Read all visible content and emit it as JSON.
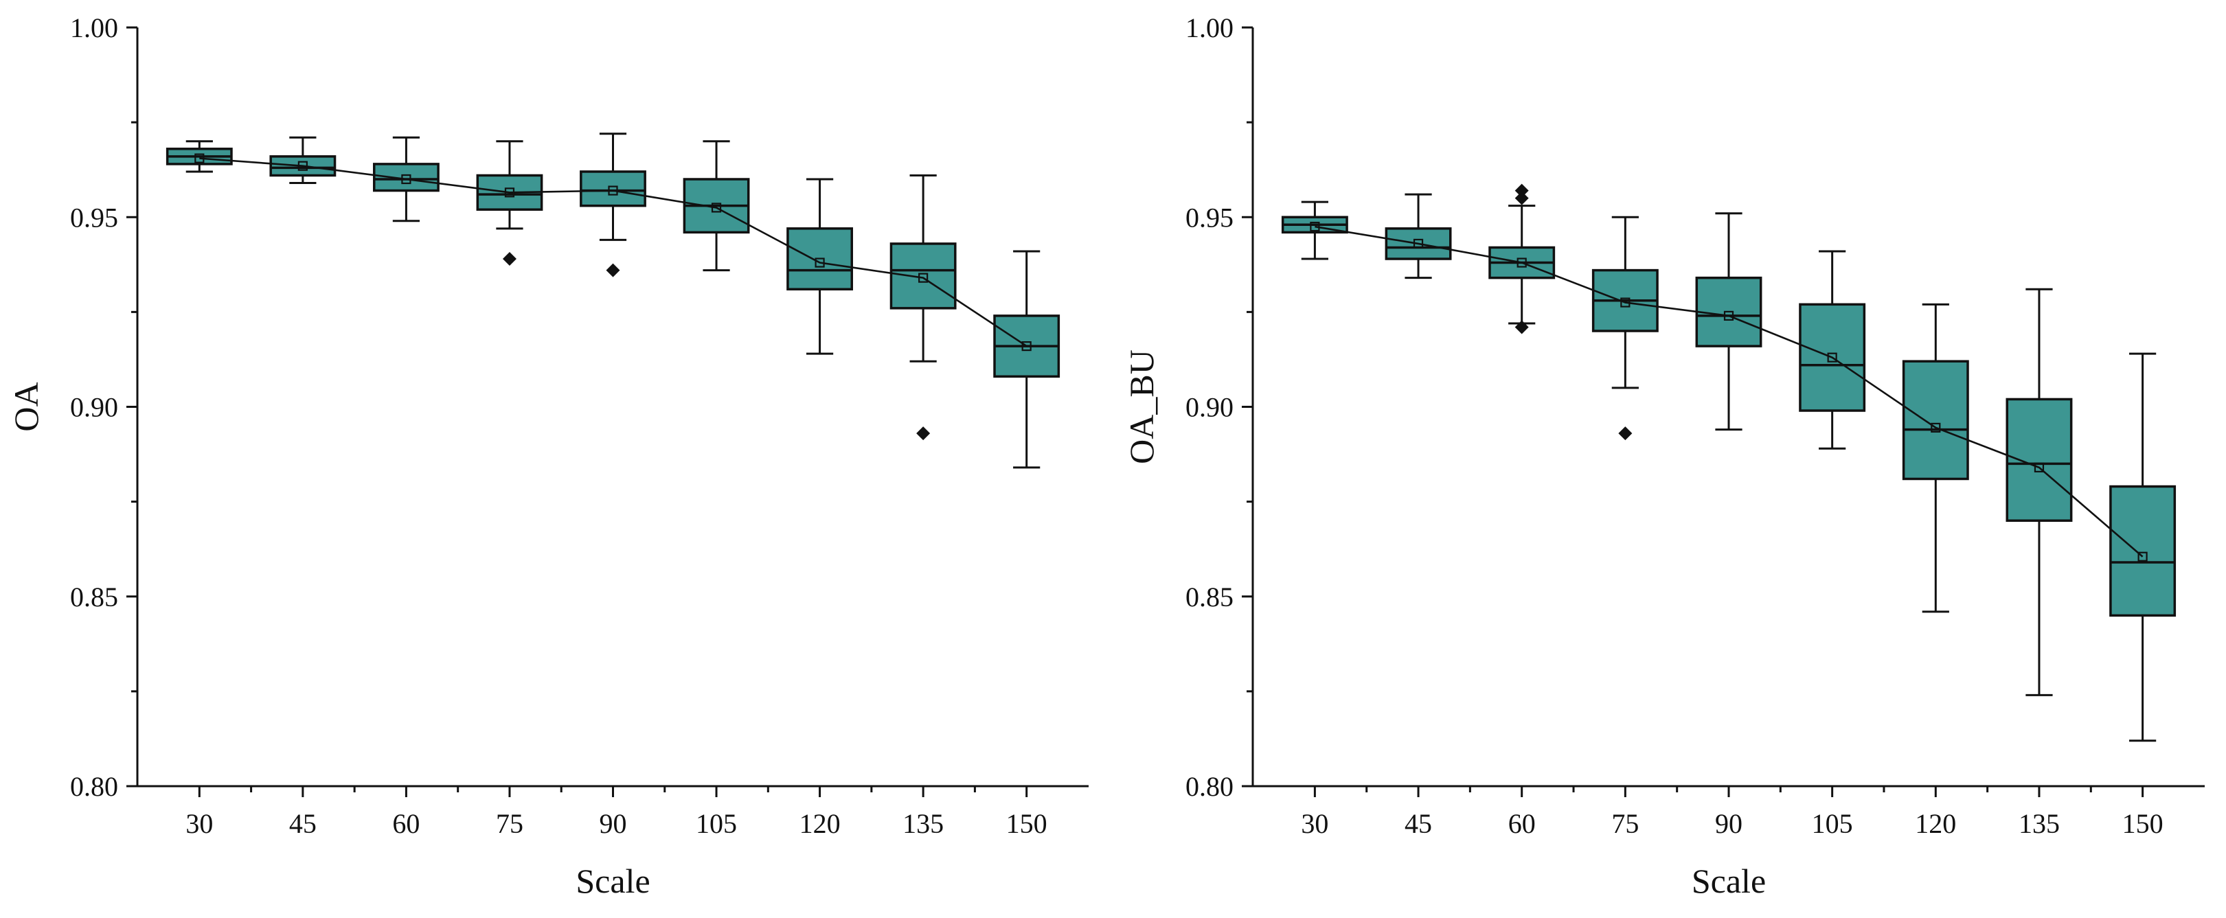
{
  "box_fill": "#3d9692",
  "chart_data": [
    {
      "type": "box",
      "xlabel": "Scale",
      "ylabel": "OA",
      "ylim": [
        0.8,
        1.0
      ],
      "y_ticks": [
        "0.80",
        "0.85",
        "0.90",
        "0.95",
        "1.00"
      ],
      "categories": [
        "30",
        "45",
        "60",
        "75",
        "90",
        "105",
        "120",
        "135",
        "150"
      ],
      "boxes": [
        {
          "cat": "30",
          "whisker_low": 0.962,
          "q1": 0.964,
          "median": 0.966,
          "q3": 0.968,
          "whisker_high": 0.97,
          "mean": 0.9655,
          "outliers": []
        },
        {
          "cat": "45",
          "whisker_low": 0.959,
          "q1": 0.961,
          "median": 0.963,
          "q3": 0.966,
          "whisker_high": 0.971,
          "mean": 0.9635,
          "outliers": []
        },
        {
          "cat": "60",
          "whisker_low": 0.949,
          "q1": 0.957,
          "median": 0.96,
          "q3": 0.964,
          "whisker_high": 0.971,
          "mean": 0.96,
          "outliers": []
        },
        {
          "cat": "75",
          "whisker_low": 0.947,
          "q1": 0.952,
          "median": 0.956,
          "q3": 0.961,
          "whisker_high": 0.97,
          "mean": 0.9565,
          "outliers": [
            0.939
          ]
        },
        {
          "cat": "90",
          "whisker_low": 0.944,
          "q1": 0.953,
          "median": 0.957,
          "q3": 0.962,
          "whisker_high": 0.972,
          "mean": 0.957,
          "outliers": [
            0.936
          ]
        },
        {
          "cat": "105",
          "whisker_low": 0.936,
          "q1": 0.946,
          "median": 0.953,
          "q3": 0.96,
          "whisker_high": 0.97,
          "mean": 0.9525,
          "outliers": []
        },
        {
          "cat": "120",
          "whisker_low": 0.914,
          "q1": 0.931,
          "median": 0.936,
          "q3": 0.947,
          "whisker_high": 0.96,
          "mean": 0.938,
          "outliers": []
        },
        {
          "cat": "135",
          "whisker_low": 0.912,
          "q1": 0.926,
          "median": 0.936,
          "q3": 0.943,
          "whisker_high": 0.961,
          "mean": 0.934,
          "outliers": [
            0.893
          ]
        },
        {
          "cat": "150",
          "whisker_low": 0.884,
          "q1": 0.908,
          "median": 0.916,
          "q3": 0.924,
          "whisker_high": 0.941,
          "mean": 0.916,
          "outliers": []
        }
      ]
    },
    {
      "type": "box",
      "xlabel": "Scale",
      "ylabel": "OA_BU",
      "ylim": [
        0.8,
        1.0
      ],
      "y_ticks": [
        "0.80",
        "0.85",
        "0.90",
        "0.95",
        "1.00"
      ],
      "categories": [
        "30",
        "45",
        "60",
        "75",
        "90",
        "105",
        "120",
        "135",
        "150"
      ],
      "boxes": [
        {
          "cat": "30",
          "whisker_low": 0.939,
          "q1": 0.946,
          "median": 0.948,
          "q3": 0.95,
          "whisker_high": 0.954,
          "mean": 0.9475,
          "outliers": []
        },
        {
          "cat": "45",
          "whisker_low": 0.934,
          "q1": 0.939,
          "median": 0.942,
          "q3": 0.947,
          "whisker_high": 0.956,
          "mean": 0.943,
          "outliers": []
        },
        {
          "cat": "60",
          "whisker_low": 0.922,
          "q1": 0.934,
          "median": 0.938,
          "q3": 0.942,
          "whisker_high": 0.953,
          "mean": 0.938,
          "outliers": [
            0.957,
            0.955,
            0.921
          ]
        },
        {
          "cat": "75",
          "whisker_low": 0.905,
          "q1": 0.92,
          "median": 0.928,
          "q3": 0.936,
          "whisker_high": 0.95,
          "mean": 0.9275,
          "outliers": [
            0.893
          ]
        },
        {
          "cat": "90",
          "whisker_low": 0.894,
          "q1": 0.916,
          "median": 0.924,
          "q3": 0.934,
          "whisker_high": 0.951,
          "mean": 0.924,
          "outliers": []
        },
        {
          "cat": "105",
          "whisker_low": 0.889,
          "q1": 0.899,
          "median": 0.911,
          "q3": 0.927,
          "whisker_high": 0.941,
          "mean": 0.913,
          "outliers": []
        },
        {
          "cat": "120",
          "whisker_low": 0.846,
          "q1": 0.881,
          "median": 0.894,
          "q3": 0.912,
          "whisker_high": 0.927,
          "mean": 0.8945,
          "outliers": []
        },
        {
          "cat": "135",
          "whisker_low": 0.824,
          "q1": 0.87,
          "median": 0.885,
          "q3": 0.902,
          "whisker_high": 0.931,
          "mean": 0.884,
          "outliers": []
        },
        {
          "cat": "150",
          "whisker_low": 0.812,
          "q1": 0.845,
          "median": 0.859,
          "q3": 0.879,
          "whisker_high": 0.914,
          "mean": 0.8605,
          "outliers": []
        }
      ]
    }
  ]
}
